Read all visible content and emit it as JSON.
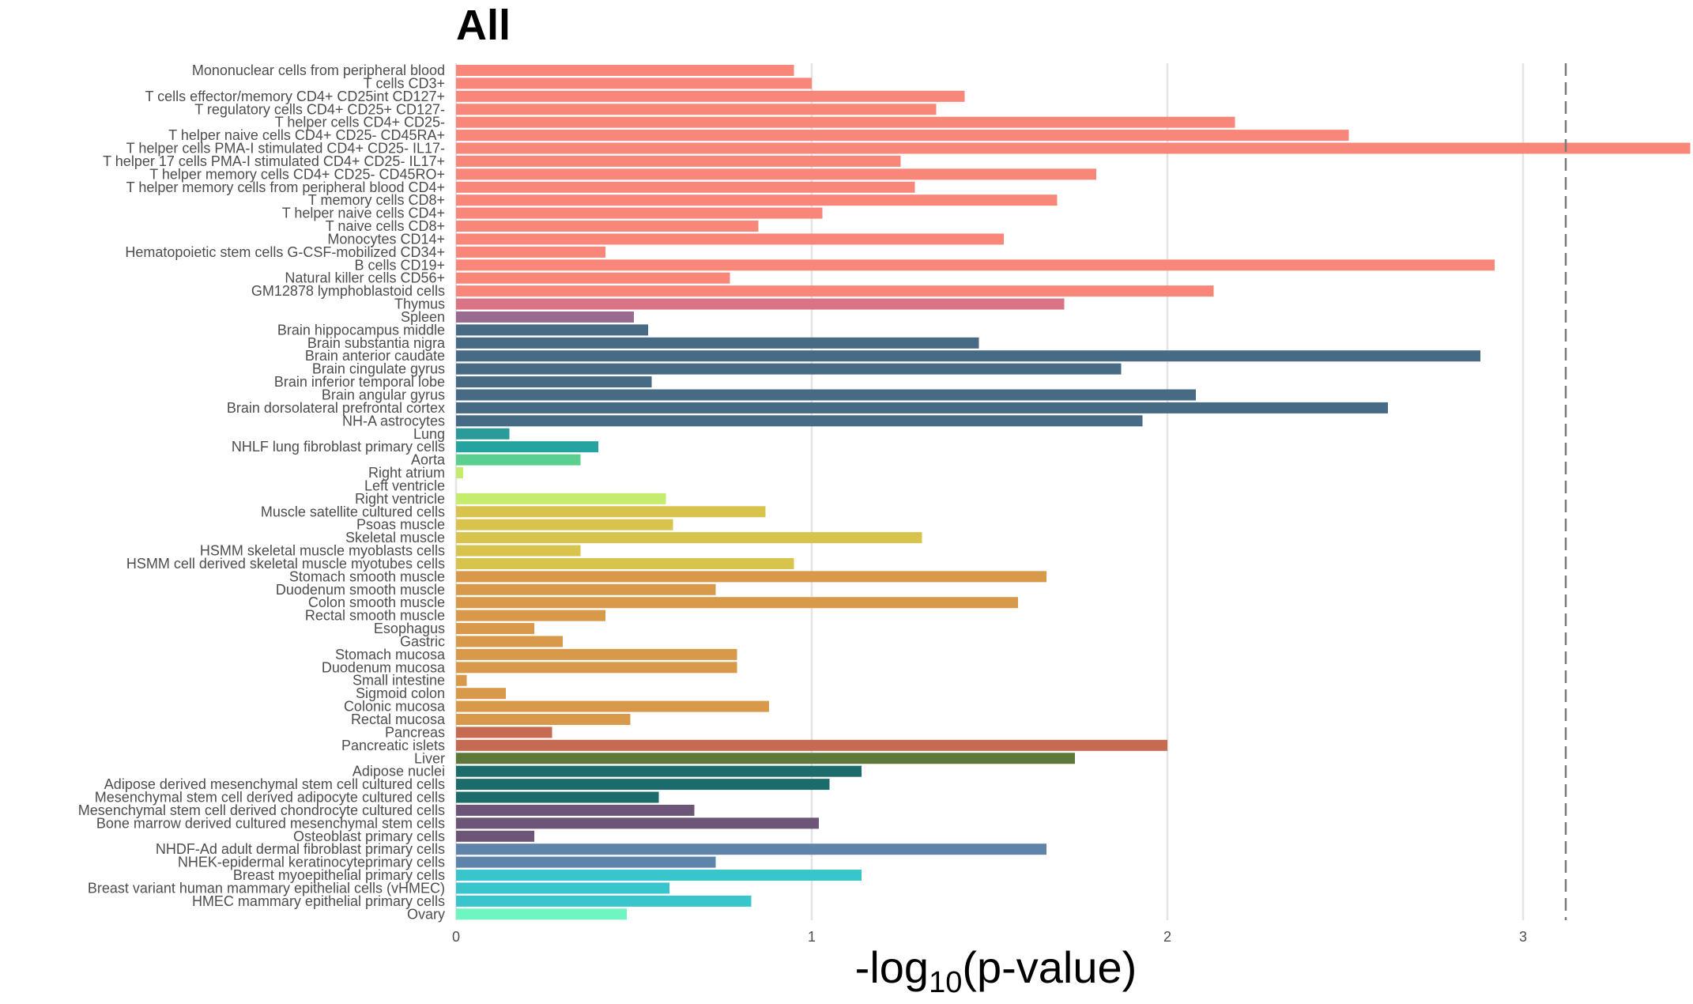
{
  "chart_data": {
    "type": "bar",
    "orientation": "horizontal",
    "title": "All",
    "xlabel_prefix": "-log",
    "xlabel_sub": "10",
    "xlabel_suffix": "(p-value)",
    "ylabel": "",
    "xlim": [
      0,
      3.47
    ],
    "xticks": [
      0,
      1,
      2,
      3
    ],
    "grid": "vertical major lines",
    "legend": "none",
    "threshold": 3.12,
    "threshold_style": "dashed",
    "categories": [
      "Mononuclear cells from peripheral blood",
      "T cells CD3+",
      "T cells effector/memory CD4+ CD25int CD127+",
      "T regulatory cells CD4+ CD25+ CD127-",
      "T helper cells CD4+ CD25-",
      "T helper naive cells CD4+ CD25- CD45RA+",
      "T helper cells PMA-I stimulated CD4+ CD25- IL17-",
      "T helper 17 cells PMA-I stimulated CD4+ CD25- IL17+",
      "T helper memory cells CD4+ CD25- CD45RO+",
      "T helper memory cells from peripheral blood CD4+",
      "T memory cells CD8+",
      "T helper naive cells CD4+",
      "T naive cells CD8+",
      "Monocytes CD14+",
      "Hematopoietic stem cells G-CSF-mobilized CD34+",
      "B cells CD19+",
      "Natural killer cells CD56+",
      "GM12878 lymphoblastoid cells",
      "Thymus",
      "Spleen",
      "Brain hippocampus middle",
      "Brain substantia nigra",
      "Brain anterior caudate",
      "Brain cingulate gyrus",
      "Brain inferior temporal lobe",
      "Brain angular gyrus",
      "Brain dorsolateral prefrontal cortex",
      "NH-A astrocytes",
      "Lung",
      "NHLF lung fibroblast primary cells",
      "Aorta",
      "Right atrium",
      "Left ventricle",
      "Right ventricle",
      "Muscle satellite cultured cells",
      "Psoas muscle",
      "Skeletal muscle",
      "HSMM skeletal muscle myoblasts cells",
      "HSMM cell derived skeletal muscle myotubes cells",
      "Stomach smooth muscle",
      "Duodenum smooth muscle",
      "Colon smooth muscle",
      "Rectal smooth muscle",
      "Esophagus",
      "Gastric",
      "Stomach mucosa",
      "Duodenum mucosa",
      "Small intestine",
      "Sigmoid colon",
      "Colonic mucosa",
      "Rectal mucosa",
      "Pancreas",
      "Pancreatic islets",
      "Liver",
      "Adipose nuclei",
      "Adipose derived mesenchymal stem cell cultured cells",
      "Mesenchymal stem cell derived adipocyte cultured cells",
      "Mesenchymal stem cell derived chondrocyte cultured cells",
      "Bone marrow derived cultured mesenchymal stem cells",
      "Osteoblast primary cells",
      "NHDF-Ad adult dermal fibroblast primary cells",
      "NHEK-epidermal keratinocyteprimary cells",
      "Breast myoepithelial primary cells",
      "Breast variant human mammary epithelial cells (vHMEC)",
      "HMEC mammary epithelial primary cells",
      "Ovary"
    ],
    "values": [
      0.95,
      1.0,
      1.43,
      1.35,
      2.19,
      2.51,
      3.47,
      1.25,
      1.8,
      1.29,
      1.69,
      1.03,
      0.85,
      1.54,
      0.42,
      2.92,
      0.77,
      2.13,
      1.71,
      0.5,
      0.54,
      1.47,
      2.88,
      1.87,
      0.55,
      2.08,
      2.62,
      1.93,
      0.15,
      0.4,
      0.35,
      0.02,
      0.0,
      0.59,
      0.87,
      0.61,
      1.31,
      0.35,
      0.95,
      1.66,
      0.73,
      1.58,
      0.42,
      0.22,
      0.3,
      0.79,
      0.79,
      0.03,
      0.14,
      0.88,
      0.49,
      0.27,
      2.0,
      1.74,
      1.14,
      1.05,
      0.57,
      0.67,
      1.02,
      0.22,
      1.66,
      0.73,
      1.14,
      0.6,
      0.83,
      0.48
    ],
    "colors": [
      "#f8877a",
      "#f8877a",
      "#f8877a",
      "#f8877a",
      "#f8877a",
      "#f8877a",
      "#f8877a",
      "#f8877a",
      "#f8877a",
      "#f8877a",
      "#f8877a",
      "#f8877a",
      "#f8877a",
      "#f8877a",
      "#f8877a",
      "#f8877a",
      "#f8877a",
      "#f8877a",
      "#d97385",
      "#9a6b91",
      "#476a85",
      "#476a85",
      "#476a85",
      "#476a85",
      "#476a85",
      "#476a85",
      "#476a85",
      "#476a85",
      "#2b9a9a",
      "#24a3a0",
      "#5bcf8f",
      "#c5ec6d",
      "#c5ec6d",
      "#c5ec6d",
      "#d8c44c",
      "#d8c44c",
      "#d8c44c",
      "#d8c44c",
      "#d8c44c",
      "#d89a4a",
      "#d89a4a",
      "#d89a4a",
      "#d89a4a",
      "#d89a4a",
      "#d89a4a",
      "#d89a4a",
      "#d89a4a",
      "#d89a4a",
      "#d89a4a",
      "#d89a4a",
      "#d89a4a",
      "#c66a52",
      "#c66a52",
      "#5d7838",
      "#1d6c6c",
      "#1d6c6c",
      "#1d6c6c",
      "#6c5577",
      "#6c5577",
      "#6c5577",
      "#5f84a9",
      "#5f84a9",
      "#38c6cc",
      "#38c6cc",
      "#38c6cc",
      "#6df5c2"
    ]
  }
}
